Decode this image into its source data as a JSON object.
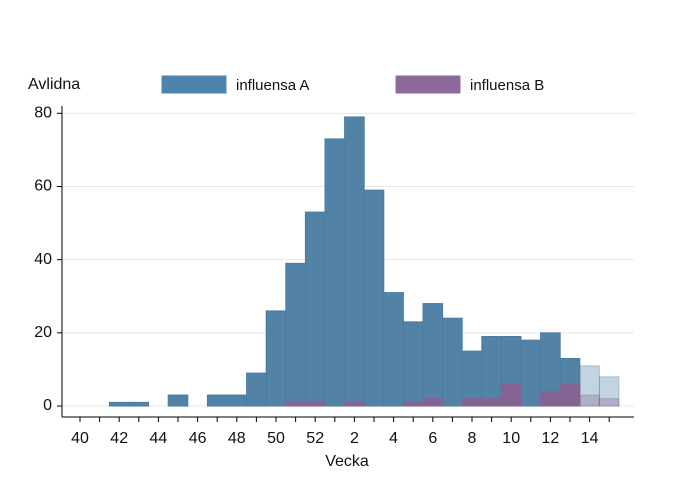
{
  "chart_data": {
    "type": "bar",
    "y_label": "Avlidna",
    "x_label": "Vecka",
    "categories": [
      "40",
      null,
      "42",
      null,
      "44",
      null,
      "46",
      null,
      "48",
      null,
      "50",
      null,
      "52",
      null,
      "2",
      null,
      "4",
      null,
      "6",
      null,
      "8",
      null,
      "10",
      null,
      "12",
      null,
      "14",
      null
    ],
    "series": [
      {
        "name": "influensa A",
        "color": "#5b9bcb",
        "values": [
          0,
          0,
          1,
          1,
          0,
          3,
          0,
          3,
          3,
          9,
          26,
          39,
          53,
          73,
          79,
          59,
          31,
          23,
          28,
          24,
          15,
          19,
          19,
          18,
          20,
          13,
          11,
          8
        ]
      },
      {
        "name": "influensa B",
        "color": "#a77bb6",
        "values": [
          0,
          0,
          0,
          0,
          0,
          0,
          0,
          0,
          0,
          0,
          0,
          1,
          1,
          0,
          1,
          0,
          0,
          1,
          2,
          0,
          2,
          2,
          6,
          0,
          4,
          6,
          3,
          2
        ]
      }
    ],
    "bar_alpha": [
      1,
      1,
      1,
      1,
      1,
      1,
      1,
      1,
      1,
      1,
      1,
      1,
      1,
      1,
      1,
      1,
      1,
      1,
      1,
      1,
      1,
      1,
      1,
      1,
      1,
      1,
      0.35,
      0.35
    ],
    "ylim": [
      -3,
      82
    ],
    "yticks": [
      0,
      20,
      40,
      60,
      80
    ],
    "grid": true,
    "legend": "top"
  }
}
